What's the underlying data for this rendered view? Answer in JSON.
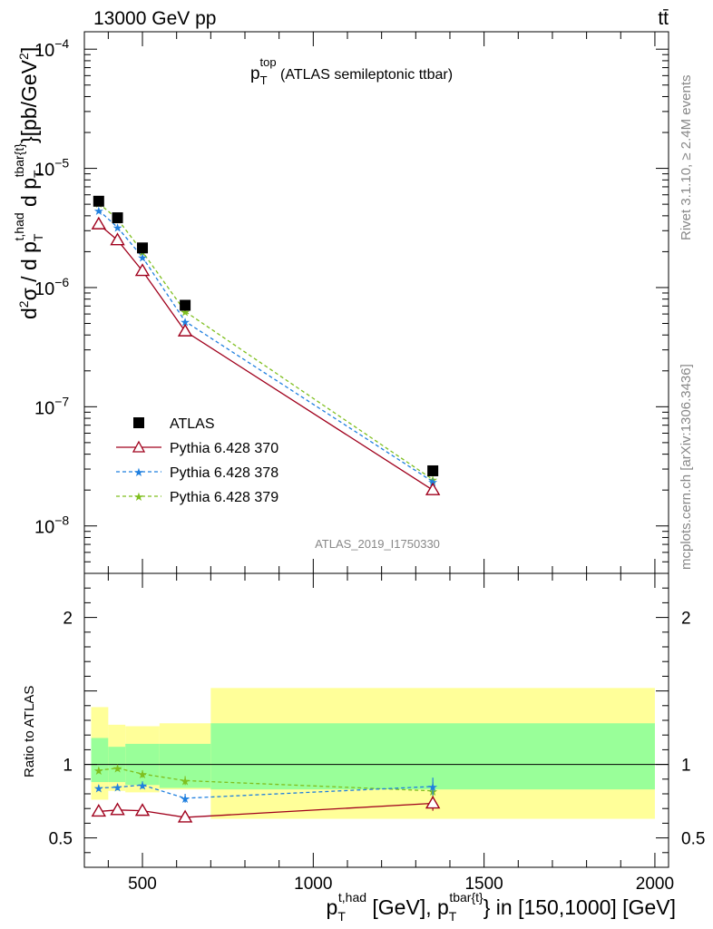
{
  "header": {
    "left": "13000 GeV pp",
    "right": "tt̄"
  },
  "side_labels": {
    "rivet": "Rivet 3.1.10, ≥ 2.4M events",
    "mcplots": "mcplots.cern.ch [arXiv:1306.3436]"
  },
  "watermark": "ATLAS_2019_I1750330",
  "main_title": {
    "base": "p",
    "sub": "T",
    "sup": "top",
    "rest": " (ATLAS semileptonic ttbar)"
  },
  "y_axis_main": {
    "d2": "d",
    "two": "2",
    "sigma": "σ / d p",
    "sub1": "T",
    "sup1": "t,had",
    "d": " d p",
    "sub2": "T",
    "sup2": "tbar{t}",
    "unit": "}[pb/GeV",
    "unit_sup": "2",
    "unit_end": "]"
  },
  "y_axis_ratio": "Ratio to ATLAS",
  "x_axis": {
    "p1": "p",
    "sub1": "T",
    "sup1": "t,had",
    "mid": " [GeV], p",
    "sub2": "T",
    "sup2": "tbar{t}",
    "end": "} in [150,1000] [GeV]"
  },
  "legend": [
    {
      "label": "ATLAS",
      "color": "#000000",
      "marker": "square"
    },
    {
      "label": "Pythia 6.428 370",
      "color": "#a0001c",
      "marker": "triangle"
    },
    {
      "label": "Pythia 6.428 378",
      "color": "#1f7fdf",
      "marker": "star"
    },
    {
      "label": "Pythia 6.428 379",
      "color": "#7fbf1f",
      "marker": "star"
    }
  ],
  "chart_data": {
    "type": "scatter",
    "x_range": [
      330,
      2040
    ],
    "main_y_range": [
      4e-09,
      0.00014
    ],
    "main_y_scale": "log",
    "ratio_y_range": [
      0.3,
      2.3
    ],
    "x_ticks": [
      500,
      1000,
      1500,
      2000
    ],
    "main_y_ticks": [
      {
        "v": 1e-08,
        "base": "10",
        "exp": "−8"
      },
      {
        "v": 1e-07,
        "base": "10",
        "exp": "−7"
      },
      {
        "v": 1e-06,
        "base": "10",
        "exp": "−6"
      },
      {
        "v": 1e-05,
        "base": "10",
        "exp": "−5"
      },
      {
        "v": 0.0001,
        "base": "10",
        "exp": "−4"
      }
    ],
    "ratio_y_ticks": [
      0.5,
      1,
      2
    ],
    "bins": [
      [
        350,
        400
      ],
      [
        400,
        450
      ],
      [
        450,
        550
      ],
      [
        550,
        700
      ],
      [
        700,
        2000
      ]
    ],
    "x": [
      372,
      427,
      500,
      625,
      1350
    ],
    "series": [
      {
        "name": "ATLAS",
        "values": [
          5.3e-06,
          3.85e-06,
          2.15e-06,
          7.1e-07,
          2.9e-08
        ]
      },
      {
        "name": "Pythia 6.428 370",
        "values": [
          3.4e-06,
          2.5e-06,
          1.38e-06,
          4.3e-07,
          2e-08
        ],
        "ratio": [
          0.68,
          0.69,
          0.685,
          0.64,
          0.735
        ],
        "ratio_err": [
          0.02,
          0.02,
          0.02,
          0.03,
          0.05
        ]
      },
      {
        "name": "Pythia 6.428 378",
        "values": [
          4.45e-06,
          3.2e-06,
          1.8e-06,
          5.2e-07,
          2.35e-08
        ],
        "ratio": [
          0.84,
          0.845,
          0.86,
          0.77,
          0.85
        ],
        "ratio_err": [
          0.02,
          0.02,
          0.025,
          0.03,
          0.06
        ]
      },
      {
        "name": "Pythia 6.428 379",
        "values": [
          5.1e-06,
          3.75e-06,
          2e-06,
          6.3e-07,
          2.45e-08
        ],
        "ratio": [
          0.96,
          0.975,
          0.935,
          0.89,
          0.82
        ],
        "ratio_err": [
          0.02,
          0.02,
          0.025,
          0.03,
          0.06
        ]
      }
    ],
    "uncertainty_bands": {
      "stat_low": [
        0.88,
        0.88,
        0.86,
        0.84,
        0.83
      ],
      "stat_high": [
        1.18,
        1.12,
        1.14,
        1.14,
        1.28
      ],
      "total_low": [
        0.76,
        0.82,
        0.81,
        0.83,
        0.63
      ],
      "total_high": [
        1.39,
        1.27,
        1.26,
        1.28,
        1.52
      ]
    },
    "colors": {
      "band_inner": "#99ff99",
      "band_outer": "#ffff99"
    }
  }
}
